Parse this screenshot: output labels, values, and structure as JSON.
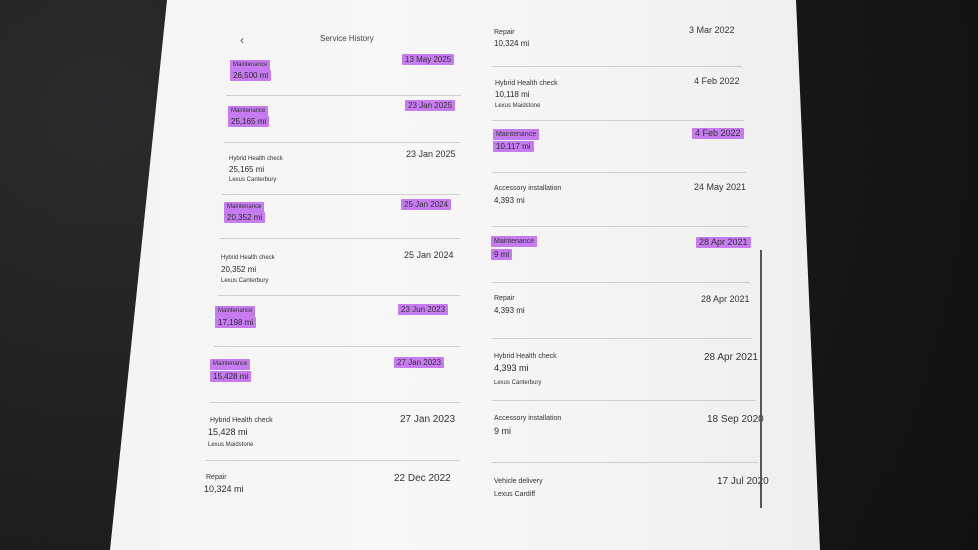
{
  "header": {
    "back_icon": "chevron-left-icon",
    "title": "Service History"
  },
  "left_column": [
    {
      "type": "Maintenance",
      "mileage": "26,500 mi",
      "location": "",
      "date": "13 May 2025",
      "highlighted": true
    },
    {
      "type": "Maintenance",
      "mileage": "25,165 mi",
      "location": "",
      "date": "23 Jan 2025",
      "highlighted": true
    },
    {
      "type": "Hybrid Health check",
      "mileage": "25,165 mi",
      "location": "Lexus Canterbury",
      "date": "23 Jan 2025",
      "highlighted": false
    },
    {
      "type": "Maintenance",
      "mileage": "20,352 mi",
      "location": "",
      "date": "25 Jan 2024",
      "highlighted": true
    },
    {
      "type": "Hybrid Health check",
      "mileage": "20,352 mi",
      "location": "Lexus Canterbury",
      "date": "25 Jan 2024",
      "highlighted": false
    },
    {
      "type": "Maintenance",
      "mileage": "17,198 mi",
      "location": "",
      "date": "23 Jun 2023",
      "highlighted": true
    },
    {
      "type": "Maintenance",
      "mileage": "15,428 mi",
      "location": "",
      "date": "27 Jan 2023",
      "highlighted": true
    },
    {
      "type": "Hybrid Health check",
      "mileage": "15,428 mi",
      "location": "Lexus Maidstone",
      "date": "27 Jan 2023",
      "highlighted": false
    },
    {
      "type": "Repair",
      "mileage": "10,324 mi",
      "location": "",
      "date": "22 Dec 2022",
      "highlighted": false
    }
  ],
  "right_column": [
    {
      "type": "Repair",
      "mileage": "10,324 mi",
      "location": "",
      "date": "3 Mar 2022",
      "highlighted": false
    },
    {
      "type": "Hybrid Health check",
      "mileage": "10,118 mi",
      "location": "Lexus Maidstone",
      "date": "4 Feb 2022",
      "highlighted": false
    },
    {
      "type": "Maintenance",
      "mileage": "10,117 mi",
      "location": "",
      "date": "4 Feb 2022",
      "highlighted": true
    },
    {
      "type": "Accessory installation",
      "mileage": "4,393 mi",
      "location": "",
      "date": "24 May 2021",
      "highlighted": false
    },
    {
      "type": "Maintenance",
      "mileage": "9 mi",
      "location": "",
      "date": "28 Apr 2021",
      "highlighted": true
    },
    {
      "type": "Repair",
      "mileage": "4,393 mi",
      "location": "",
      "date": "28 Apr 2021",
      "highlighted": false
    },
    {
      "type": "Hybrid Health check",
      "mileage": "4,393 mi",
      "location": "Lexus Canterbury",
      "date": "28 Apr 2021",
      "highlighted": false
    },
    {
      "type": "Accessory installation",
      "mileage": "9 mi",
      "location": "",
      "date": "18 Sep 2020",
      "highlighted": false
    },
    {
      "type": "Vehicle delivery",
      "mileage": "",
      "location": "Lexus Cardiff",
      "date": "17 Jul 2020",
      "highlighted": false
    }
  ],
  "colors": {
    "highlight": "#c77bf0",
    "paper": "#f3f3f3",
    "background": "#1d1d1f"
  }
}
